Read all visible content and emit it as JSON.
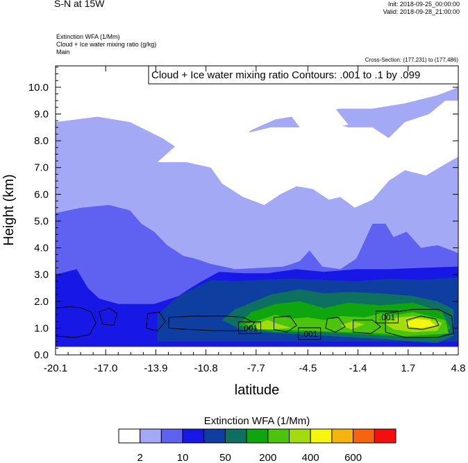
{
  "header": {
    "title": "S-N at 15W",
    "init": "Init: 2018-09-25_00:00:00",
    "valid": "Valid: 2018-09-28_21:00:00",
    "field1": "Extinction WFA   (1/Mm)",
    "field2": "Cloud + Ice water mixing ratio   (g/kg)",
    "field3": "Main",
    "cross_section": "Cross-Section: (177,231) to (177,486)"
  },
  "chart_data": {
    "type": "heatmap",
    "title": "S-N at 15W",
    "xlabel": "latitude",
    "ylabel": "Height (km)",
    "x_ticks": [
      "-20.1",
      "-17.0",
      "-13.9",
      "-10.8",
      "-7.7",
      "-4.5",
      "-1.4",
      "1.7",
      "4.8"
    ],
    "x_tick_values": [
      -20.1,
      -17.0,
      -13.9,
      -10.8,
      -7.7,
      -4.5,
      -1.4,
      1.7,
      4.8
    ],
    "y_ticks": [
      "0.0",
      "1.0",
      "2.0",
      "3.0",
      "4.0",
      "5.0",
      "6.0",
      "7.0",
      "8.0",
      "9.0",
      "10.0"
    ],
    "y_tick_values": [
      0,
      1,
      2,
      3,
      4,
      5,
      6,
      7,
      8,
      9,
      10
    ],
    "xlim": [
      -20.1,
      4.8
    ],
    "ylim": [
      0,
      10.8
    ],
    "contour_info": "Cloud + Ice water mixing ratio Contours: .001 to .1 by .099",
    "contour_labels": [
      {
        "text": ".001",
        "x": -8.1,
        "y": 1.0
      },
      {
        "text": ".001",
        "x": -4.4,
        "y": 0.78
      },
      {
        "text": ".001",
        "x": 0.4,
        "y": 1.4
      }
    ],
    "colorbar": {
      "title": "Extinction WFA  (1/Mm)",
      "colors": [
        "#ffffff",
        "#a3a9f5",
        "#5f61f0",
        "#1818e6",
        "#0e3ea0",
        "#0e7060",
        "#0ea50e",
        "#4cc40e",
        "#a3dc0e",
        "#f5f50e",
        "#f5b40e",
        "#f5640e",
        "#f50e0e"
      ],
      "labels": [
        "2",
        "10",
        "50",
        "200",
        "400",
        "600"
      ],
      "label_boundaries": [
        1,
        3,
        5,
        7,
        9,
        11
      ]
    },
    "field_regions": [
      {
        "level": 1,
        "points": [
          [
            -20.1,
            8.7
          ],
          [
            -17.5,
            8.9
          ],
          [
            -15.5,
            8.7
          ],
          [
            -13.5,
            8.1
          ],
          [
            -12.0,
            7.5
          ],
          [
            -10.5,
            7.3
          ],
          [
            -9.5,
            7.6
          ],
          [
            -8.0,
            8.4
          ],
          [
            -6.5,
            8.8
          ],
          [
            -4.5,
            9.0
          ],
          [
            -2.5,
            9.2
          ],
          [
            -0.5,
            9.2
          ],
          [
            1.5,
            9.4
          ],
          [
            3.5,
            9.7
          ],
          [
            4.8,
            10.0
          ],
          [
            4.8,
            2.9
          ],
          [
            -20.1,
            2.9
          ]
        ]
      },
      {
        "level": 0,
        "points": [
          [
            -13.8,
            7.2
          ],
          [
            -12.0,
            7.2
          ],
          [
            -10.5,
            7.0
          ],
          [
            -9.8,
            6.4
          ],
          [
            -8.5,
            5.9
          ],
          [
            -7.2,
            5.6
          ],
          [
            -6.2,
            6.0
          ],
          [
            -5.2,
            6.3
          ],
          [
            -4.2,
            6.2
          ],
          [
            -3.2,
            5.8
          ],
          [
            -2.5,
            5.9
          ],
          [
            -1.6,
            5.5
          ],
          [
            -0.5,
            5.8
          ],
          [
            0.5,
            6.5
          ],
          [
            1.5,
            6.9
          ],
          [
            2.8,
            6.7
          ],
          [
            4.2,
            7.2
          ],
          [
            4.8,
            7.4
          ],
          [
            4.8,
            9.5
          ],
          [
            4.0,
            9.5
          ],
          [
            3.0,
            9.0
          ],
          [
            1.5,
            8.7
          ],
          [
            0.5,
            8.1
          ],
          [
            -0.5,
            8.5
          ],
          [
            -2.0,
            8.5
          ],
          [
            -3.2,
            8.7
          ],
          [
            -5.0,
            8.5
          ],
          [
            -6.8,
            8.5
          ],
          [
            -8.2,
            8.3
          ],
          [
            -9.5,
            7.8
          ],
          [
            -11.0,
            7.8
          ],
          [
            -12.5,
            7.9
          ]
        ]
      },
      {
        "level": 0,
        "points": [
          [
            -5.5,
            8.9
          ],
          [
            -4.5,
            9.1
          ],
          [
            -2.8,
            9.2
          ],
          [
            -2.0,
            8.6
          ],
          [
            -3.5,
            8.4
          ],
          [
            -5.0,
            8.5
          ]
        ]
      },
      {
        "level": 2,
        "points": [
          [
            -20.1,
            5.3
          ],
          [
            -18.5,
            5.5
          ],
          [
            -16.8,
            5.6
          ],
          [
            -15.5,
            5.4
          ],
          [
            -14.8,
            4.9
          ],
          [
            -14.0,
            4.6
          ],
          [
            -13.2,
            4.1
          ],
          [
            -12.2,
            3.7
          ],
          [
            -11.5,
            3.6
          ],
          [
            -10.5,
            3.4
          ],
          [
            -9.0,
            3.2
          ],
          [
            -7.5,
            3.25
          ],
          [
            -6.0,
            3.3
          ],
          [
            -5.0,
            3.5
          ],
          [
            -4.4,
            3.9
          ],
          [
            -3.6,
            3.3
          ],
          [
            -2.5,
            3.2
          ],
          [
            -1.5,
            3.6
          ],
          [
            -0.5,
            4.9
          ],
          [
            0.3,
            4.9
          ],
          [
            0.8,
            4.4
          ],
          [
            1.6,
            4.6
          ],
          [
            2.5,
            4.0
          ],
          [
            3.5,
            4.1
          ],
          [
            4.4,
            3.9
          ],
          [
            4.8,
            3.8
          ],
          [
            4.8,
            0.6
          ],
          [
            -20.1,
            0.6
          ]
        ]
      },
      {
        "level": 3,
        "points": [
          [
            -20.1,
            3.0
          ],
          [
            -18.8,
            3.2
          ],
          [
            -18.1,
            2.5
          ],
          [
            -17.4,
            2.1
          ],
          [
            -16.2,
            1.9
          ],
          [
            -14.0,
            1.9
          ],
          [
            -12.5,
            2.2
          ],
          [
            -12.0,
            2.4
          ],
          [
            -11.2,
            2.7
          ],
          [
            -10.0,
            3.1
          ],
          [
            -8.5,
            3.05
          ],
          [
            -7.0,
            3.05
          ],
          [
            -5.2,
            3.2
          ],
          [
            -3.5,
            3.1
          ],
          [
            -1.5,
            3.2
          ],
          [
            0.5,
            3.2
          ],
          [
            2.5,
            3.25
          ],
          [
            4.8,
            3.3
          ],
          [
            4.8,
            0.3
          ],
          [
            -20.1,
            0.3
          ]
        ]
      },
      {
        "level": 4,
        "points": [
          [
            -13.8,
            1.5
          ],
          [
            -12.5,
            2.2
          ],
          [
            -11.5,
            2.5
          ],
          [
            -10.5,
            2.8
          ],
          [
            -9.0,
            2.75
          ],
          [
            -7.5,
            2.8
          ],
          [
            -5.5,
            2.85
          ],
          [
            -3.5,
            2.8
          ],
          [
            -1.5,
            2.75
          ],
          [
            0.5,
            2.85
          ],
          [
            2.5,
            2.8
          ],
          [
            4.8,
            2.9
          ],
          [
            4.8,
            0.5
          ],
          [
            -13.8,
            0.5
          ]
        ]
      },
      {
        "level": 5,
        "points": [
          [
            -9.8,
            1.3
          ],
          [
            -9.0,
            1.7
          ],
          [
            -8.0,
            1.95
          ],
          [
            -6.8,
            2.25
          ],
          [
            -5.0,
            2.45
          ],
          [
            -3.5,
            2.3
          ],
          [
            -2.0,
            2.35
          ],
          [
            0.0,
            2.3
          ],
          [
            2.0,
            2.2
          ],
          [
            3.5,
            2.0
          ],
          [
            4.5,
            1.7
          ],
          [
            4.5,
            0.7
          ],
          [
            3.5,
            0.45
          ],
          [
            2.0,
            0.5
          ],
          [
            0.0,
            0.6
          ],
          [
            -3.0,
            0.7
          ],
          [
            -6.0,
            0.8
          ],
          [
            -8.5,
            0.9
          ]
        ]
      },
      {
        "level": 6,
        "points": [
          [
            -8.8,
            1.1
          ],
          [
            -8.0,
            1.6
          ],
          [
            -6.5,
            1.9
          ],
          [
            -5.0,
            2.0
          ],
          [
            -3.5,
            1.75
          ],
          [
            -2.0,
            1.95
          ],
          [
            0.0,
            1.85
          ],
          [
            2.0,
            1.95
          ],
          [
            3.8,
            1.6
          ],
          [
            4.3,
            1.0
          ],
          [
            3.5,
            0.6
          ],
          [
            2.0,
            0.65
          ],
          [
            -0.5,
            0.75
          ],
          [
            -3.5,
            0.85
          ],
          [
            -6.5,
            0.85
          ]
        ]
      },
      {
        "level": 7,
        "points": [
          [
            -8.5,
            1.1
          ],
          [
            -7.5,
            1.3
          ],
          [
            -6.5,
            1.5
          ],
          [
            -5.5,
            1.35
          ],
          [
            -4.5,
            1.4
          ],
          [
            -3.5,
            1.3
          ],
          [
            -2.5,
            1.45
          ],
          [
            -1.0,
            1.4
          ],
          [
            0.0,
            1.55
          ],
          [
            1.0,
            1.5
          ],
          [
            2.0,
            1.6
          ],
          [
            3.0,
            1.45
          ],
          [
            4.0,
            1.3
          ],
          [
            4.2,
            0.8
          ],
          [
            3.0,
            0.75
          ],
          [
            1.5,
            0.7
          ],
          [
            0.0,
            0.8
          ],
          [
            -2.0,
            0.85
          ],
          [
            -4.5,
            0.9
          ],
          [
            -7.0,
            0.95
          ]
        ]
      },
      {
        "level": 8,
        "points": [
          [
            -7.8,
            1.1
          ],
          [
            -7.0,
            1.3
          ],
          [
            -6.3,
            1.15
          ],
          [
            -5.5,
            1.0
          ],
          [
            -6.8,
            0.95
          ],
          [
            -7.6,
            0.95
          ]
        ]
      },
      {
        "level": 8,
        "points": [
          [
            0.2,
            1.2
          ],
          [
            1.0,
            1.4
          ],
          [
            2.0,
            1.45
          ],
          [
            3.0,
            1.35
          ],
          [
            3.8,
            1.2
          ],
          [
            3.5,
            0.9
          ],
          [
            2.0,
            0.85
          ],
          [
            0.8,
            0.95
          ]
        ]
      },
      {
        "level": 8,
        "points": [
          [
            -2.5,
            1.1
          ],
          [
            -1.8,
            1.25
          ],
          [
            -1.0,
            1.15
          ],
          [
            -1.8,
            0.95
          ]
        ]
      },
      {
        "level": 9,
        "points": [
          [
            1.5,
            1.2
          ],
          [
            2.2,
            1.35
          ],
          [
            3.0,
            1.3
          ],
          [
            3.4,
            1.1
          ],
          [
            2.5,
            1.0
          ],
          [
            1.8,
            1.05
          ]
        ]
      }
    ],
    "contours": [
      {
        "points": [
          [
            -20.1,
            1.75
          ],
          [
            -19.2,
            1.8
          ],
          [
            -18.5,
            1.75
          ],
          [
            -17.9,
            1.6
          ],
          [
            -17.6,
            1.2
          ],
          [
            -18.0,
            0.75
          ],
          [
            -18.9,
            0.65
          ],
          [
            -20.1,
            0.7
          ]
        ]
      },
      {
        "points": [
          [
            -17.4,
            1.6
          ],
          [
            -16.8,
            1.75
          ],
          [
            -16.3,
            1.55
          ],
          [
            -16.5,
            1.1
          ],
          [
            -17.2,
            1.15
          ]
        ]
      },
      {
        "points": [
          [
            -14.4,
            1.55
          ],
          [
            -13.7,
            1.6
          ],
          [
            -13.3,
            1.25
          ],
          [
            -13.8,
            0.9
          ],
          [
            -14.5,
            1.0
          ]
        ]
      },
      {
        "points": [
          [
            -13.1,
            1.4
          ],
          [
            -11.5,
            1.45
          ],
          [
            -9.5,
            1.45
          ],
          [
            -8.5,
            1.4
          ],
          [
            -7.8,
            1.2
          ],
          [
            -8.3,
            0.9
          ],
          [
            -10.0,
            0.9
          ],
          [
            -12.0,
            0.95
          ],
          [
            -13.1,
            1.0
          ]
        ]
      },
      {
        "points": [
          [
            -6.6,
            1.4
          ],
          [
            -5.6,
            1.45
          ],
          [
            -5.2,
            1.1
          ],
          [
            -5.8,
            0.85
          ],
          [
            -6.6,
            0.95
          ]
        ]
      },
      {
        "points": [
          [
            -3.3,
            1.35
          ],
          [
            -2.6,
            1.4
          ],
          [
            -2.2,
            1.05
          ],
          [
            -2.8,
            0.85
          ],
          [
            -3.4,
            1.0
          ]
        ]
      },
      {
        "points": [
          [
            -1.7,
            1.3
          ],
          [
            -0.5,
            1.3
          ],
          [
            0.0,
            1.05
          ],
          [
            -0.6,
            0.8
          ],
          [
            -1.7,
            0.85
          ]
        ]
      },
      {
        "points": [
          [
            0.3,
            1.55
          ],
          [
            2.0,
            1.7
          ],
          [
            3.6,
            1.7
          ],
          [
            4.4,
            1.45
          ],
          [
            4.5,
            0.8
          ],
          [
            3.5,
            0.65
          ],
          [
            1.5,
            0.65
          ],
          [
            0.3,
            0.85
          ]
        ]
      },
      {
        "points": [
          [
            1.6,
            1.3
          ],
          [
            2.5,
            1.45
          ],
          [
            3.4,
            1.35
          ],
          [
            3.6,
            1.1
          ],
          [
            2.6,
            0.95
          ],
          [
            1.7,
            1.0
          ]
        ]
      }
    ]
  }
}
